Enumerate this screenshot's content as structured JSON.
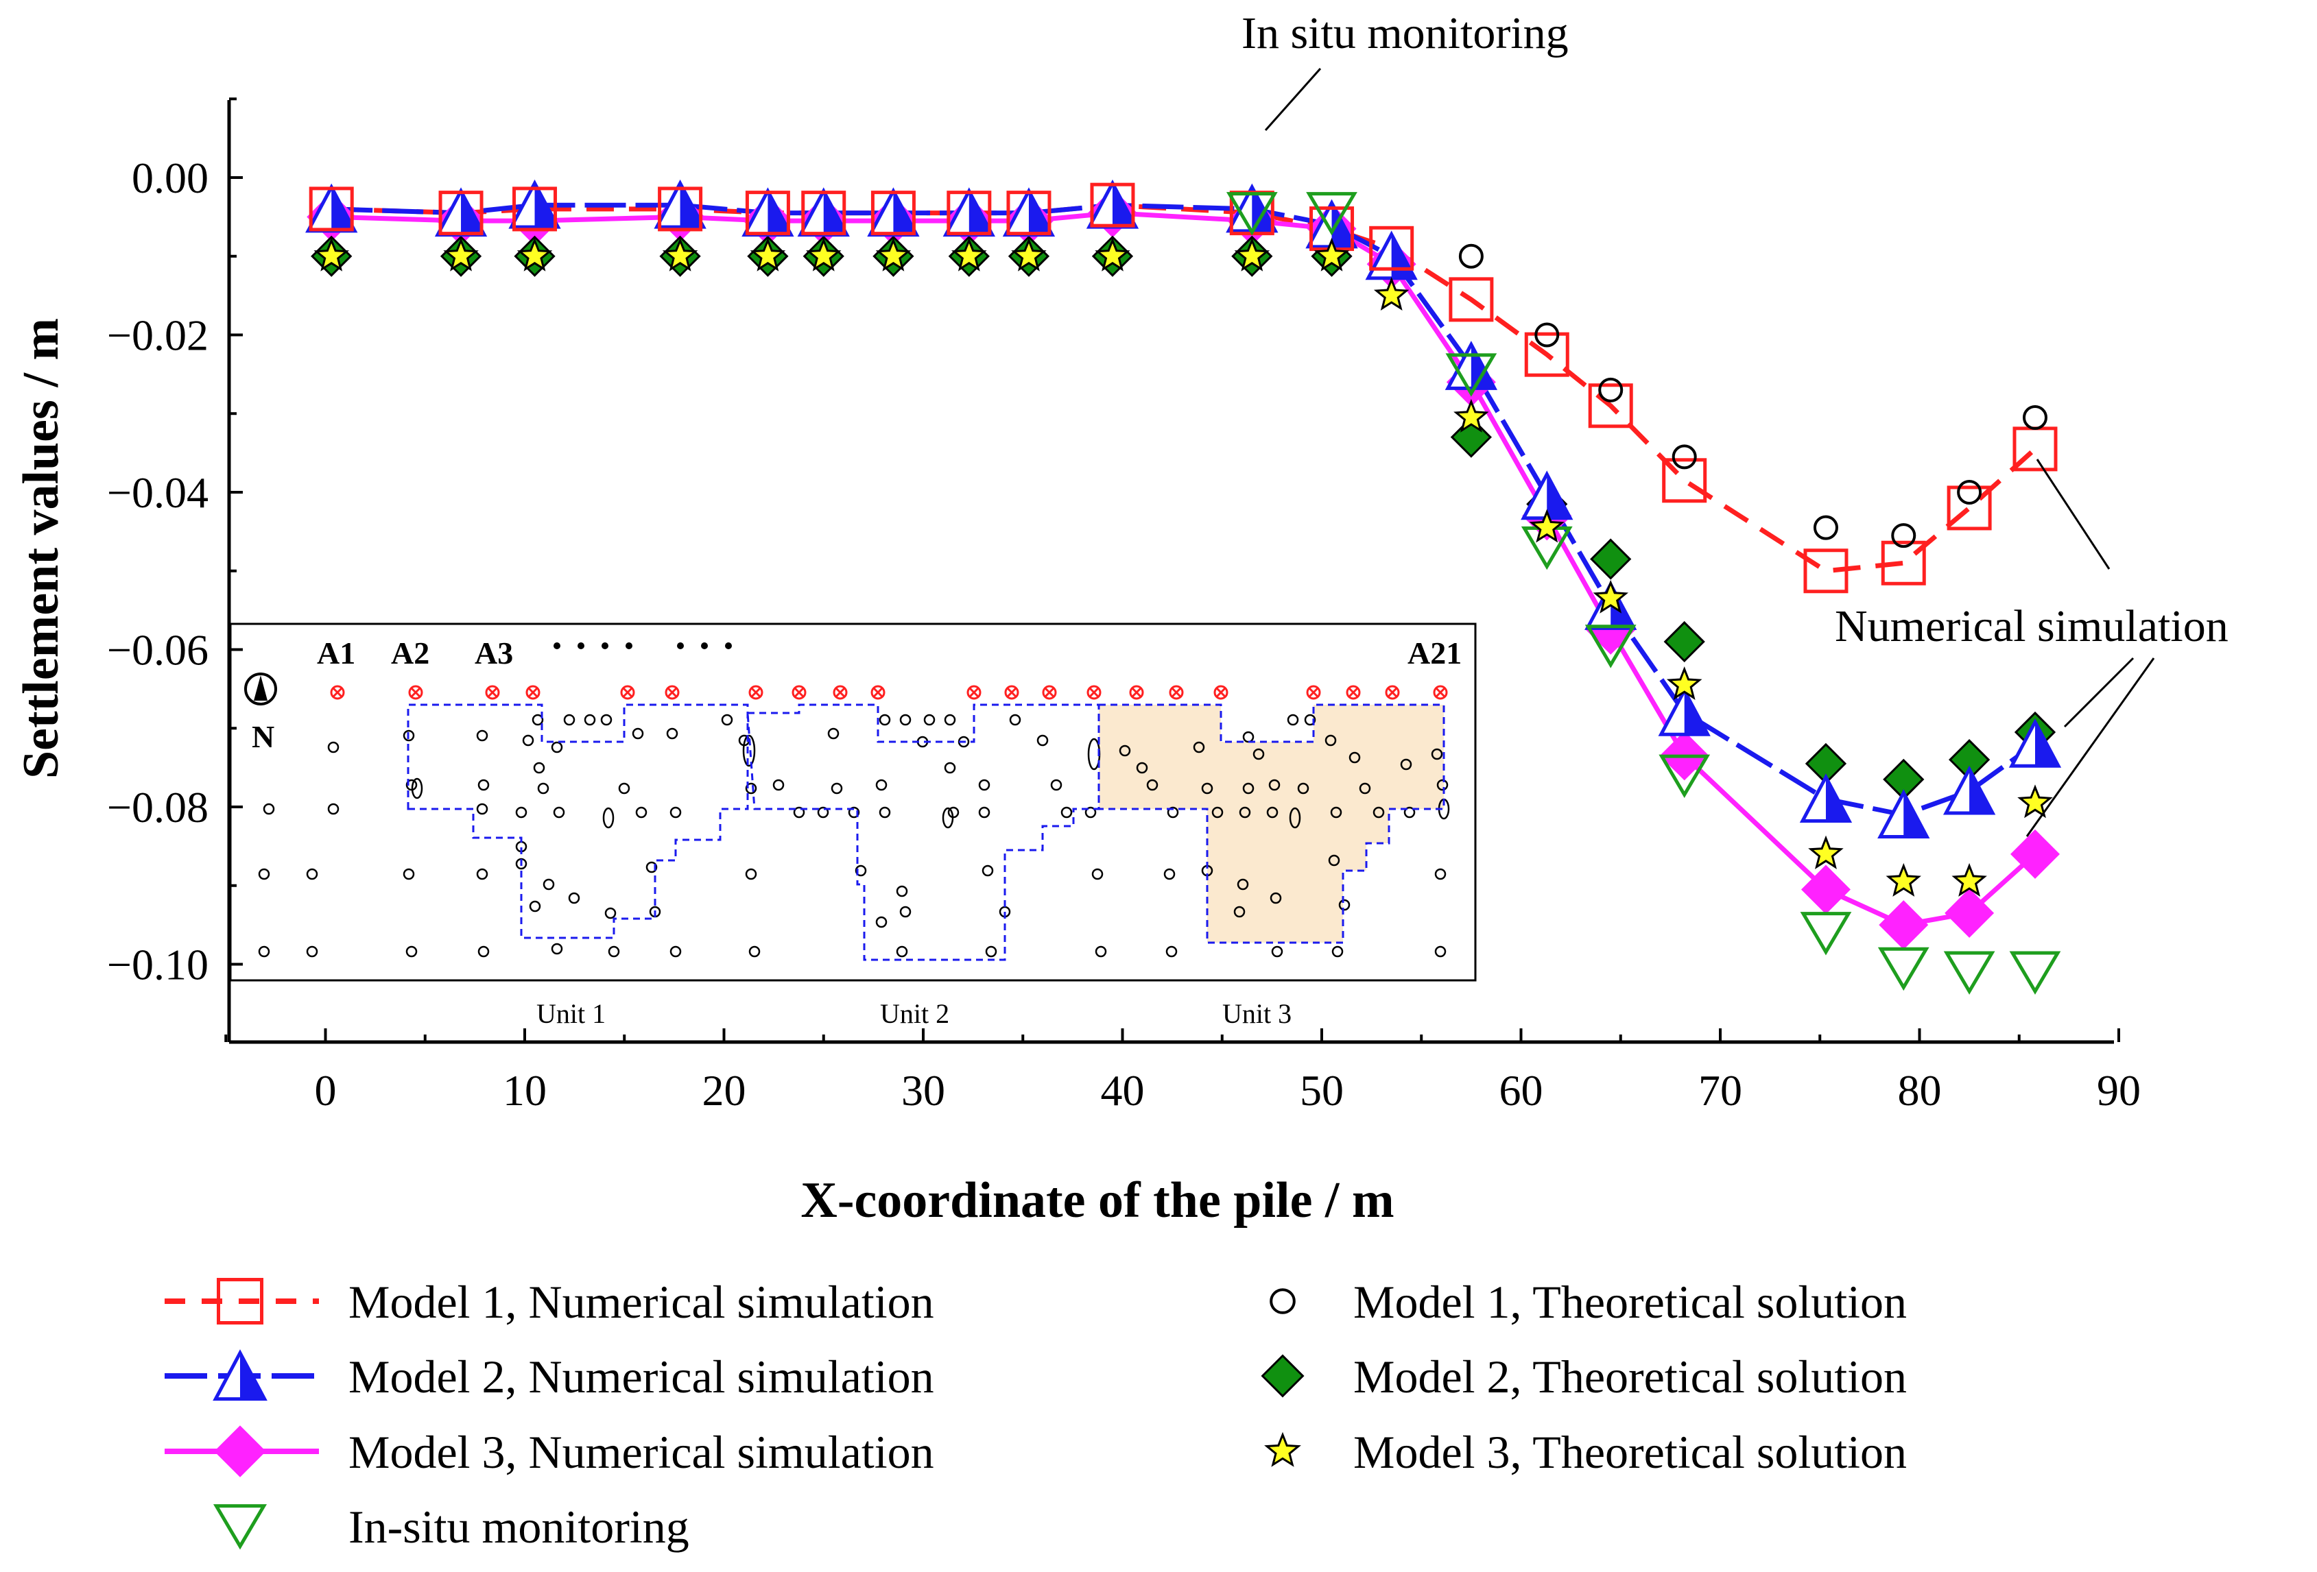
{
  "chart_data": {
    "type": "line",
    "xlabel": "X-coordinate of the pile / m",
    "ylabel": "Settlement values / m",
    "xlim": [
      -5,
      90
    ],
    "ylim": [
      -0.11,
      0.01
    ],
    "xticks": [
      0,
      10,
      20,
      30,
      40,
      50,
      60,
      70,
      80,
      90
    ],
    "yticks": [
      0.0,
      -0.02,
      -0.04,
      -0.06,
      -0.08,
      -0.1
    ],
    "ytick_labels": [
      "0.00",
      "−0.02",
      "−0.04",
      "−0.06",
      "−0.08",
      "−0.10"
    ],
    "series": [
      {
        "name": "Model 1, Numerical simulation",
        "color": "#ff2020",
        "marker": "open-square",
        "line": "dashed",
        "x": [
          0.3,
          6.8,
          10.5,
          17.8,
          22.2,
          25.0,
          28.5,
          32.3,
          35.3,
          39.5,
          46.5,
          50.5,
          53.5,
          57.5,
          61.3,
          64.5,
          68.2,
          75.3,
          79.2,
          82.5,
          85.8
        ],
        "y": [
          -0.004,
          -0.0045,
          -0.004,
          -0.004,
          -0.0045,
          -0.0045,
          -0.0045,
          -0.0045,
          -0.0045,
          -0.0035,
          -0.0045,
          -0.0065,
          -0.009,
          -0.0155,
          -0.0225,
          -0.029,
          -0.0385,
          -0.05,
          -0.049,
          -0.042,
          -0.0345
        ]
      },
      {
        "name": "Model 2, Numerical simulation",
        "color": "#1a1aee",
        "marker": "half-triangle",
        "line": "dashed",
        "x": [
          0.3,
          6.8,
          10.5,
          17.8,
          22.2,
          25.0,
          28.5,
          32.3,
          35.3,
          39.5,
          46.5,
          50.5,
          53.5,
          57.5,
          61.3,
          64.5,
          68.2,
          75.3,
          79.2,
          82.5,
          85.8
        ],
        "y": [
          -0.004,
          -0.0045,
          -0.0035,
          -0.0035,
          -0.0045,
          -0.0045,
          -0.0045,
          -0.0045,
          -0.0045,
          -0.0035,
          -0.004,
          -0.006,
          -0.01,
          -0.024,
          -0.0405,
          -0.0545,
          -0.068,
          -0.079,
          -0.081,
          -0.078,
          -0.072
        ]
      },
      {
        "name": "Model 3, Numerical simulation",
        "color": "#ff22ff",
        "marker": "diamond",
        "line": "solid",
        "x": [
          0.3,
          6.8,
          10.5,
          17.8,
          22.2,
          25.0,
          28.5,
          32.3,
          35.3,
          39.5,
          46.5,
          50.5,
          53.5,
          57.5,
          61.3,
          64.5,
          68.2,
          75.3,
          79.2,
          82.5,
          85.8
        ],
        "y": [
          -0.005,
          -0.0055,
          -0.0055,
          -0.005,
          -0.0055,
          -0.0055,
          -0.0055,
          -0.0055,
          -0.0055,
          -0.0045,
          -0.0055,
          -0.0065,
          -0.011,
          -0.026,
          -0.043,
          -0.0575,
          -0.0735,
          -0.0905,
          -0.095,
          -0.0935,
          -0.086
        ]
      },
      {
        "name": "In-situ monitoring",
        "color": "#1e9e1e",
        "marker": "open-triangle-down",
        "line": "none",
        "x": [
          46.5,
          50.5,
          57.5,
          61.3,
          64.5,
          68.2,
          75.3,
          79.2,
          82.5,
          85.8
        ],
        "y": [
          -0.0045,
          -0.0045,
          -0.025,
          -0.047,
          -0.0595,
          -0.076,
          -0.096,
          -0.1005,
          -0.101,
          -0.101
        ]
      },
      {
        "name": "Model 1, Theoretical solution",
        "color": "#000000",
        "marker": "open-circle",
        "line": "none",
        "x": [
          57.5,
          61.3,
          64.5,
          68.2,
          75.3,
          79.2,
          82.5,
          85.8
        ],
        "y": [
          -0.01,
          -0.02,
          -0.027,
          -0.0355,
          -0.0445,
          -0.0455,
          -0.04,
          -0.0305
        ]
      },
      {
        "name": "Model 2, Theoretical solution",
        "color": "#109010",
        "marker": "filled-diamond",
        "line": "none",
        "x": [
          0.3,
          6.8,
          10.5,
          17.8,
          22.2,
          25.0,
          28.5,
          32.3,
          35.3,
          39.5,
          46.5,
          50.5,
          57.5,
          61.3,
          64.5,
          68.2,
          75.3,
          79.2,
          82.5,
          85.8
        ],
        "y": [
          -0.01,
          -0.01,
          -0.01,
          -0.01,
          -0.01,
          -0.01,
          -0.01,
          -0.01,
          -0.01,
          -0.01,
          -0.01,
          -0.01,
          -0.033,
          -0.0415,
          -0.0485,
          -0.059,
          -0.0745,
          -0.0765,
          -0.074,
          -0.0705
        ]
      },
      {
        "name": "Model 3, Theoretical solution",
        "color": "#ffff22",
        "marker": "star",
        "line": "none",
        "x": [
          0.3,
          6.8,
          10.5,
          17.8,
          22.2,
          25.0,
          28.5,
          32.3,
          35.3,
          39.5,
          46.5,
          50.5,
          53.5,
          57.5,
          61.3,
          64.5,
          68.2,
          75.3,
          79.2,
          82.5,
          85.8
        ],
        "y": [
          -0.01,
          -0.01,
          -0.01,
          -0.01,
          -0.01,
          -0.01,
          -0.01,
          -0.01,
          -0.01,
          -0.01,
          -0.01,
          -0.01,
          -0.015,
          -0.0305,
          -0.0445,
          -0.0535,
          -0.0645,
          -0.086,
          -0.0895,
          -0.0895,
          -0.0795
        ]
      }
    ],
    "annotations": {
      "in_situ": "In situ monitoring",
      "numerical": "Numerical simulation"
    },
    "legend": {
      "placement": "bottom",
      "left_column": [
        "Model 1, Numerical simulation",
        "Model 2, Numerical simulation",
        "Model 3, Numerical simulation",
        "In-situ monitoring"
      ],
      "right_column": [
        "Model 1, Theoretical solution",
        "Model 2, Theoretical solution",
        "Model 3, Theoretical solution"
      ]
    },
    "inset": {
      "description_labels": {
        "north": "N",
        "a1": "A1",
        "a2": "A2",
        "a3": "A3",
        "a21": "A21",
        "unit1": "Unit 1",
        "unit2": "Unit 2",
        "unit3": "Unit 3"
      },
      "highlighted_unit": "Unit 3",
      "highlight_color": "#fbe9cf",
      "boundary_color": "#1a1aee",
      "pile_marker_color": "#ff2020"
    }
  }
}
